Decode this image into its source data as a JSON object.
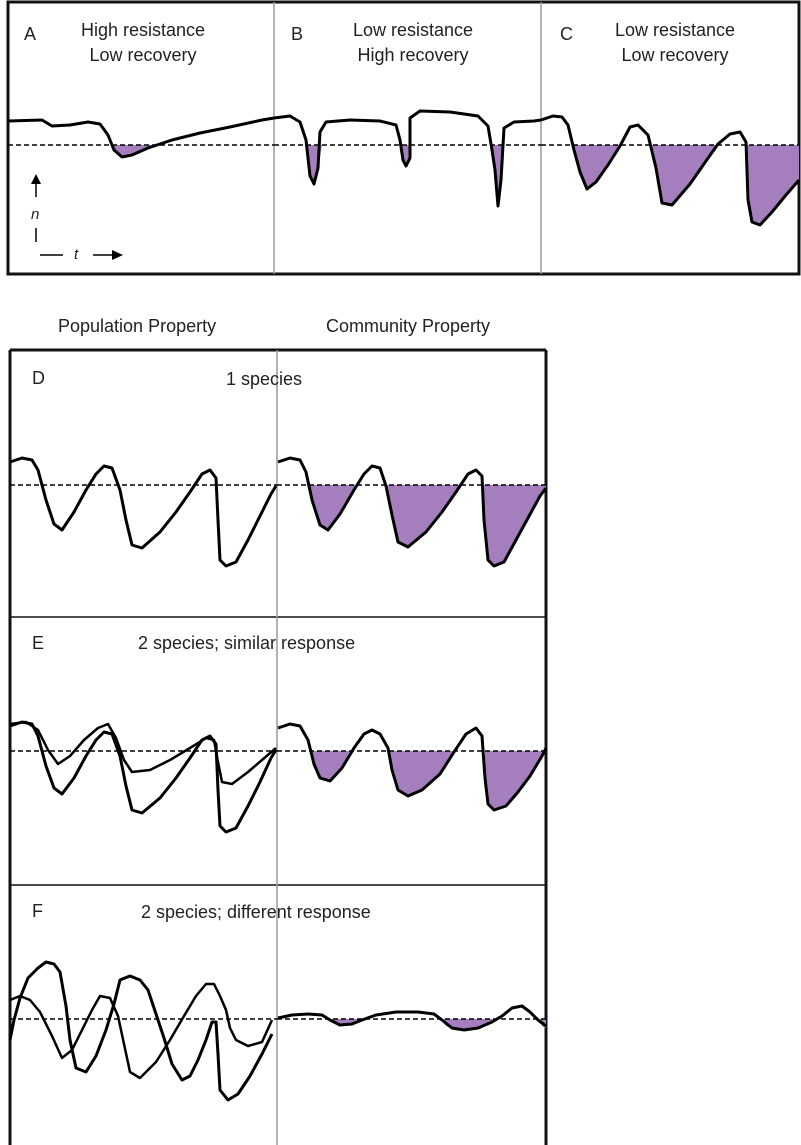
{
  "colors": {
    "fill": "#a57fbd",
    "stroke": "#000000",
    "divider": "#9a9a9a",
    "frame": "#111111"
  },
  "top_panels": [
    {
      "letter": "A",
      "title_1": "High resistance",
      "title_2": "Low recovery"
    },
    {
      "letter": "B",
      "title_1": "Low resistance",
      "title_2": "High recovery"
    },
    {
      "letter": "C",
      "title_1": "Low resistance",
      "title_2": "Low recovery"
    }
  ],
  "axes": {
    "y": "n",
    "x": "t"
  },
  "column_headers": {
    "population": "Population Property",
    "community": "Community Property"
  },
  "lower_panels": [
    {
      "letter": "D",
      "title": "1 species"
    },
    {
      "letter": "E",
      "title": "2 species; similar response"
    },
    {
      "letter": "F",
      "title": "2 species; different response"
    }
  ],
  "icons": [
    "arrow-up-icon",
    "arrow-right-icon"
  ]
}
